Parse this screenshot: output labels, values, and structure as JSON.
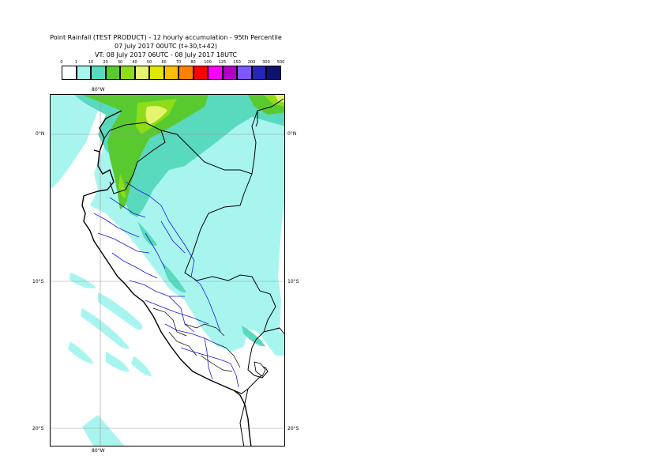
{
  "title": {
    "line1": "Point Rainfall (TEST PRODUCT) - 12 hourly accumulation - 95th Percentile",
    "line2": "07 July 2017 00UTC (t+30,t+42)",
    "line3": "VT: 08 July 2017 06UTC - 08 July 2017 18UTC"
  },
  "colorbar": {
    "labels": [
      "0",
      "1",
      "10",
      "20",
      "30",
      "40",
      "50",
      "60",
      "70",
      "80",
      "100",
      "125",
      "150",
      "200",
      "300",
      "500"
    ],
    "colors": [
      "#ffffff",
      "#a8f5f0",
      "#59d9bd",
      "#59c930",
      "#8edc1a",
      "#e6f56d",
      "#e0e800",
      "#ffbe00",
      "#ff8000",
      "#ff0000",
      "#ff00ff",
      "#b000c8",
      "#7d58ff",
      "#2626b8",
      "#0d1270"
    ]
  },
  "axes": {
    "top_lon": "80°W",
    "bottom_lon": "80°W",
    "lat_labels": [
      "0°N",
      "10°S",
      "20°S"
    ]
  }
}
